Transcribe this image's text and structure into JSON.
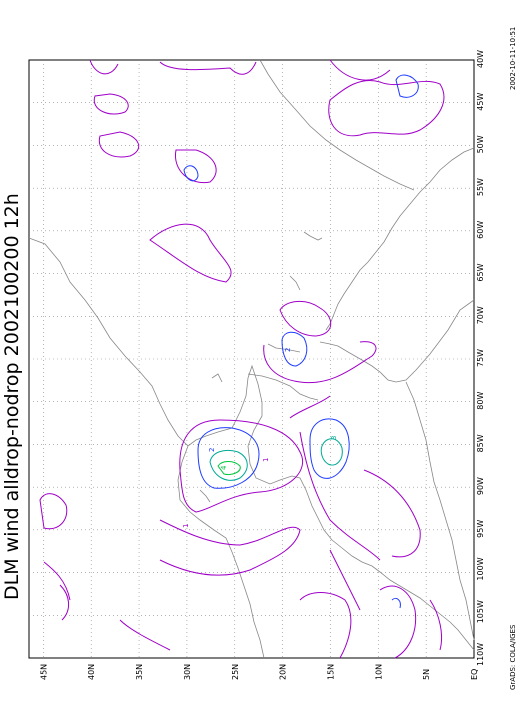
{
  "title": "DLM wind alldrop-nodrop 2002100200 12h",
  "timestamp": "2002-10-11-10:51",
  "credit": "GrADS: COLA/IGES",
  "axes": {
    "lon_labels": [
      "110W",
      "105W",
      "100W",
      "95W",
      "90W",
      "85W",
      "80W",
      "75W",
      "70W",
      "65W",
      "60W",
      "55W",
      "50W",
      "45W",
      "40W"
    ],
    "lat_labels": [
      "EQ",
      "5N",
      "10N",
      "15N",
      "20N",
      "25N",
      "30N",
      "35N",
      "40N",
      "45N"
    ]
  },
  "contour_colors": {
    "level_1": "#a000c8",
    "level_2": "#1e3cff",
    "level_3": "#00aa96",
    "level_4": "#00c83c"
  },
  "contour_labels": [
    "1",
    "2",
    "3",
    "4"
  ],
  "colors": {
    "coastline": "#888888",
    "grid": "#888888",
    "frame": "#000000"
  }
}
